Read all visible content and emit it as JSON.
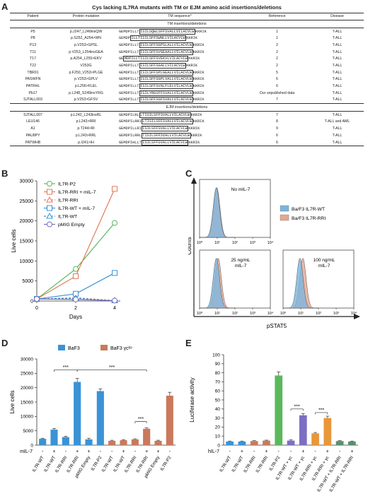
{
  "panels": {
    "A": "A",
    "B": "B",
    "C": "C",
    "D": "D",
    "E": "E"
  },
  "tableA": {
    "title": "Cys lacking IL7RA mutants with TM or EJM amino acid insertions/deletions",
    "headers": [
      "Patient",
      "Protein mutation",
      "TM sequence*",
      "Reference",
      "Disease"
    ],
    "tm_section": "TM insertions/deletions",
    "ejm_section": "EJM insertions/deletions",
    "tm_rows": [
      {
        "patient": "P5",
        "mutation": "p.J247_L248insQW",
        "pre": "GEMDPILLT",
        "box": "ISILSQWLSFFSVALLVILACVLW",
        "post": "KKRIK",
        "ref": "1",
        "disease": "T-ALL"
      },
      {
        "patient": "P8",
        "mutation": "p.S252_A254>WN",
        "pre": "GEMDP",
        "box": "ILLTISILSFFSWNLLVILACVLW",
        "post": "KKRIK",
        "ref": "1",
        "disease": "T-ALL"
      },
      {
        "patient": "P13",
        "mutation": "p.V253>GPSL",
        "pre": "GEMDPILLT",
        "box": "ISILSFFSGPSLALLVILACVLW",
        "post": "KKRIK",
        "ref": "2",
        "disease": "T-ALL"
      },
      {
        "patient": "T11",
        "mutation": "p.V253_L254insGEA",
        "pre": "GEMDPILLT",
        "box": "ISILSFFSVGEAALLVILACVLW",
        "post": "KKRIK",
        "ref": "2",
        "disease": "T-ALL"
      },
      {
        "patient": "T17",
        "mutation": "p.A254_L255>EKV",
        "pre": "GE",
        "box": "MDPILLTISILSFFSVEKVLVILACVLW",
        "post": "KKRIK",
        "ref": "2",
        "disease": "T-ALL"
      },
      {
        "patient": "T22",
        "mutation": "V253G",
        "pre": "GEMDPILLT",
        "box": "ISILSFFSGALLVILACVLW",
        "post": "KKRIK",
        "ref": "2",
        "disease": "T-ALL"
      },
      {
        "patient": "TBR01",
        "mutation": "p.F250_V253>PLGE",
        "pre": "GEMDPILLT",
        "box": "ISILSFFSPLGEALLVILACVLW",
        "post": "KKRIK",
        "ref": "5",
        "disease": "T-ALL"
      },
      {
        "patient": "PASWFN",
        "mutation": "p.V253>GPLV",
        "pre": "GEMDPILLT",
        "box": "ISILSFFSGPLVALLVILACVLW",
        "post": "KKRIK",
        "ref": "6",
        "disease": "T-ALL"
      },
      {
        "patient": "PATRHL",
        "mutation": "p.L256>FLEL",
        "pre": "GEMDPILLT",
        "box": "ISILSFFSVALFLELVILACVLW",
        "post": "KKRIK",
        "ref": "6",
        "disease": "T-ALL"
      },
      {
        "patient": "Pb17",
        "mutation": "p.L248_S249insYRG",
        "pre": "GEMDPILLT",
        "box": "ISILYRGSFFSVALLVILACVLW",
        "post": "KKRIK",
        "ref": "Our unpublished data",
        "disease": "T-ALL"
      },
      {
        "patient": "SJTALL003",
        "mutation": "p.V253>GFSV",
        "pre": "GEMDPILLT",
        "box": "ISILSFFSGFSVALLVILACVLW",
        "post": "KKRIK",
        "ref": "7",
        "disease": "T-ALL"
      }
    ],
    "ejm_rows": [
      {
        "patient": "SJTALL007",
        "mutation": "p.L242_L243insRL",
        "pre": "GEMDPILRL",
        "box": "LTISILSFFSVALLVILACVLW",
        "post": "KKRIK",
        "ref": "7",
        "disease": "T-ALL"
      },
      {
        "patient": "LEU146",
        "mutation": "p.L243>RRI",
        "pre": "GEMDPILRRI",
        "box": "LTISILSFFSVALLVILACVLW",
        "post": "KKRIK",
        "ref": "8",
        "disease": "T-ALL and AML"
      },
      {
        "patient": "A1",
        "mutation": "p.T244>RI",
        "pre": "GEMDPILLRI",
        "box": "ISILSFFSVALLVILACVLW",
        "post": "KKRIK",
        "ref": "9",
        "disease": "T-ALL"
      },
      {
        "patient": "PAU8PY",
        "mutation": "p.L243>RRL",
        "pre": "GEMDPILRRL",
        "box": "TISILSFFSVALLVILACVLW",
        "post": "KKRIK",
        "ref": "6",
        "disease": "T-ALL"
      },
      {
        "patient": "PATWHB",
        "mutation": "p.I241>IH",
        "pre": "GEMDPIHLLT",
        "box": "ISILSFFSVALLVILACVLW",
        "post": "KKRIK",
        "ref": "6",
        "disease": "T-ALL"
      }
    ]
  },
  "chart_data": [
    {
      "panel": "B",
      "type": "line",
      "x": [
        0,
        2,
        4
      ],
      "xlabel": "Days",
      "ylabel": "Live cells",
      "ylim": [
        0,
        30000
      ],
      "yticks": [
        0,
        5000,
        10000,
        15000,
        20000,
        25000,
        30000
      ],
      "series": [
        {
          "name": "IL7R-P2",
          "color": "#5cb85c",
          "marker": "circle",
          "dash": false,
          "values": [
            500,
            8000,
            19500
          ]
        },
        {
          "name": "IL7R-RRI + mIL-7",
          "color": "#e07b5a",
          "marker": "square",
          "dash": false,
          "values": [
            500,
            6200,
            28000
          ]
        },
        {
          "name": "IL7R-RRI",
          "color": "#e07b5a",
          "marker": "triangle",
          "dash": true,
          "values": [
            500,
            800,
            100
          ]
        },
        {
          "name": "IL7R-WT + mIL-7",
          "color": "#3a93d6",
          "marker": "square",
          "dash": false,
          "values": [
            500,
            1800,
            7000
          ]
        },
        {
          "name": "IL7R-WT",
          "color": "#3a93d6",
          "marker": "triangle",
          "dash": true,
          "values": [
            500,
            700,
            100
          ]
        },
        {
          "name": "pMIG Empty",
          "color": "#7b6fc4",
          "marker": "circle",
          "dash": false,
          "values": [
            500,
            400,
            100
          ]
        }
      ]
    },
    {
      "panel": "C",
      "type": "area",
      "ylabel": "Counts",
      "xlabel": "pSTAT5",
      "xticks": [
        "10⁰",
        "10¹",
        "10²",
        "10³",
        "10⁴"
      ],
      "legend": [
        {
          "name": "Ba/F3 IL7R-WT",
          "color": "#7ab5df"
        },
        {
          "name": "Ba/F3 IL7R-RRI",
          "color": "#e8a68e"
        }
      ],
      "subplots": [
        {
          "label": "No mIL-7",
          "wt_peak": 0.95,
          "rri_peak": 0.97
        },
        {
          "label": "25 ng/mL mIL-7",
          "wt_peak": 0.95,
          "rri_peak": 1.05
        },
        {
          "label": "100 ng/mL mIL-7",
          "wt_peak": 0.95,
          "rri_peak": 1.12
        }
      ]
    },
    {
      "panel": "D",
      "type": "bar",
      "ylabel": "Live cells",
      "ylim": [
        0,
        30000
      ],
      "yticks": [
        0,
        5000,
        10000,
        15000,
        20000,
        25000,
        30000
      ],
      "legend": [
        {
          "name": "BaF3",
          "color": "#3a93d6"
        },
        {
          "name": "BaF3 γcᵏᵒ",
          "color": "#c9795c"
        }
      ],
      "treatment_label": "mIL-7",
      "categories": [
        "IL7R-WT",
        "IL7R-WT",
        "IL7R-RRI",
        "IL7R-RRI",
        "pMIG Empty",
        "IL7R-P2",
        "IL7R-WT",
        "IL7R-WT",
        "IL7R-RRI",
        "IL7R-RRI",
        "pMIG Empty",
        "IL7R-P2"
      ],
      "treatment": [
        "-",
        "+",
        "-",
        "+",
        "+",
        "-",
        "-",
        "+",
        "-",
        "+",
        "+",
        "-"
      ],
      "group": [
        0,
        0,
        0,
        0,
        0,
        0,
        1,
        1,
        1,
        1,
        1,
        1
      ],
      "values": [
        2200,
        5400,
        2800,
        22000,
        2000,
        18800,
        1500,
        1700,
        2000,
        5700,
        1500,
        17200
      ],
      "errors": [
        200,
        400,
        300,
        1200,
        400,
        800,
        200,
        200,
        200,
        300,
        200,
        1200
      ],
      "sig": [
        "***",
        "***",
        "***"
      ]
    },
    {
      "panel": "E",
      "type": "bar",
      "ylabel": "Luciferase activity",
      "ylim": [
        0,
        100
      ],
      "yticks": [
        0,
        10,
        20,
        30,
        40,
        50,
        60,
        70,
        80,
        90,
        100
      ],
      "treatment_label": "hIL-7",
      "categories": [
        "IL7R-WT",
        "IL7R-WT",
        "IL7R-RRI",
        "IL7R-RRI",
        "IL7R-P2",
        "IL7R-WT + γc",
        "IL7R-WT + γc",
        "IL7R-RRI + γc",
        "IL7R-RRI + γc",
        "IL7R-WT + IL7R-RRI",
        "IL7R-WT + IL7R-RRI"
      ],
      "treatment": [
        "-",
        "+",
        "-",
        "+",
        "-",
        "-",
        "+",
        "-",
        "+",
        "-",
        "+"
      ],
      "colors": [
        "#3a93d6",
        "#3a93d6",
        "#c9795c",
        "#c9795c",
        "#5cb85c",
        "#7b6fc4",
        "#7b6fc4",
        "#e8973a",
        "#e8973a",
        "#5a8f6b",
        "#5a8f6b"
      ],
      "values": [
        4,
        4,
        4.5,
        5,
        77,
        5,
        33,
        13,
        30,
        4.5,
        4
      ],
      "errors": [
        0.5,
        0.5,
        0.5,
        0.5,
        4,
        1,
        2,
        1,
        2,
        0.5,
        0.5
      ],
      "sig": [
        "***",
        "***"
      ]
    }
  ]
}
